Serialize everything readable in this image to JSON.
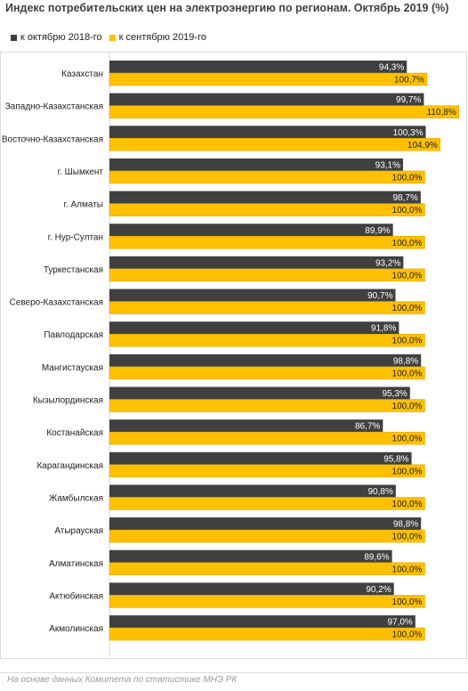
{
  "title": "Индекс потребительских цен на электроэнергию по регионам. Октябрь 2019 (%)",
  "footer": "На основе данных Комитета по статистике МНЭ РК",
  "colors": {
    "series1": "#404040",
    "series2": "#ffc000",
    "grid": "#d9d9d9"
  },
  "chart_data": {
    "type": "bar",
    "orientation": "horizontal",
    "title": "Индекс потребительских цен на электроэнергию по регионам. Октябрь 2019 (%)",
    "categories": [
      "Казахстан",
      "Западно-Казахстанская",
      "Восточно-Казахстанская",
      "г. Шымкент",
      "г. Алматы",
      "г. Нур-Султан",
      "Туркестанская",
      "Северо-Казахстанская",
      "Павлодарская",
      "Мангистауская",
      "Кызылординская",
      "Костанайская",
      "Карагандинская",
      "Жамбылская",
      "Атырауская",
      "Алматинская",
      "Актюбинская",
      "Акмолинская"
    ],
    "series": [
      {
        "name": "к октябрю 2018-го",
        "values": [
          94.3,
          99.7,
          100.3,
          93.1,
          98.7,
          89.9,
          93.2,
          90.7,
          91.8,
          98.8,
          95.3,
          86.7,
          95.8,
          90.8,
          98.8,
          89.6,
          90.2,
          97.0
        ],
        "labels": [
          "94,3%",
          "99,7%",
          "100,3%",
          "93,1%",
          "98,7%",
          "89,9%",
          "93,2%",
          "90,7%",
          "91,8%",
          "98,8%",
          "95,3%",
          "86,7%",
          "95,8%",
          "90,8%",
          "98,8%",
          "89,6%",
          "90,2%",
          "97,0%"
        ]
      },
      {
        "name": "к сентябрю 2019-го",
        "values": [
          100.7,
          110.8,
          104.9,
          100.0,
          100.0,
          100.0,
          100.0,
          100.0,
          100.0,
          100.0,
          100.0,
          100.0,
          100.0,
          100.0,
          100.0,
          100.0,
          100.0,
          100.0
        ],
        "labels": [
          "100,7%",
          "110,8%",
          "104,9%",
          "100,0%",
          "100,0%",
          "100,0%",
          "100,0%",
          "100,0%",
          "100,0%",
          "100,0%",
          "100,0%",
          "100,0%",
          "100,0%",
          "100,0%",
          "100,0%",
          "100,0%",
          "100,0%",
          "100,0%"
        ]
      }
    ],
    "xlim": [
      0,
      112
    ],
    "legend": "top-left",
    "grid": false
  }
}
